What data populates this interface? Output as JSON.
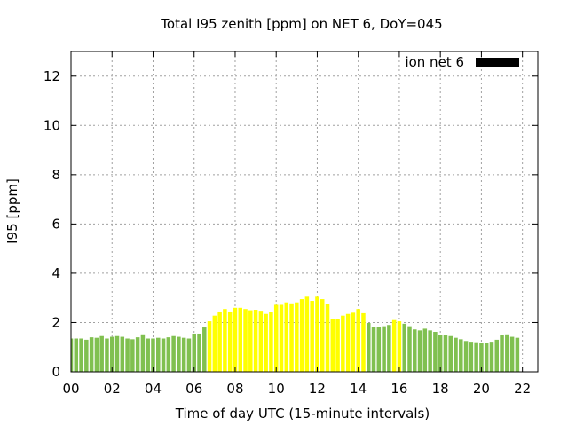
{
  "chart_data": {
    "type": "bar",
    "title": "Total I95 zenith [ppm] on NET 6, DoY=045",
    "xlabel": "Time of day UTC (15-minute intervals)",
    "ylabel": "I95 [ppm]",
    "xlim": [
      0,
      22.75
    ],
    "ylim": [
      0,
      13
    ],
    "xticks": [
      "00",
      "02",
      "04",
      "06",
      "08",
      "10",
      "12",
      "14",
      "16",
      "18",
      "20",
      "22"
    ],
    "yticks": [
      "0",
      "2",
      "4",
      "6",
      "8",
      "10",
      "12"
    ],
    "grid": true,
    "legend": {
      "placement": "top-right",
      "label": "ion net 6",
      "color": "#000000"
    },
    "colors": {
      "low": "#80c050",
      "high": "#ffff00"
    },
    "threshold": 2.0,
    "interval_hours": 0.25,
    "values": [
      1.35,
      1.35,
      1.35,
      1.3,
      1.4,
      1.38,
      1.45,
      1.35,
      1.42,
      1.45,
      1.42,
      1.35,
      1.32,
      1.4,
      1.52,
      1.35,
      1.35,
      1.38,
      1.35,
      1.4,
      1.45,
      1.42,
      1.38,
      1.35,
      1.55,
      1.55,
      1.8,
      2.05,
      2.28,
      2.45,
      2.55,
      2.45,
      2.6,
      2.6,
      2.55,
      2.5,
      2.52,
      2.48,
      2.35,
      2.42,
      2.72,
      2.72,
      2.82,
      2.78,
      2.82,
      2.95,
      3.05,
      2.88,
      3.05,
      2.95,
      2.75,
      2.15,
      2.15,
      2.28,
      2.35,
      2.4,
      2.55,
      2.38,
      1.98,
      1.82,
      1.82,
      1.85,
      1.9,
      2.1,
      2.05,
      1.95,
      1.85,
      1.72,
      1.68,
      1.75,
      1.68,
      1.62,
      1.5,
      1.48,
      1.45,
      1.38,
      1.32,
      1.25,
      1.22,
      1.2,
      1.18,
      1.18,
      1.22,
      1.3,
      1.48,
      1.52,
      1.42,
      1.38
    ]
  }
}
